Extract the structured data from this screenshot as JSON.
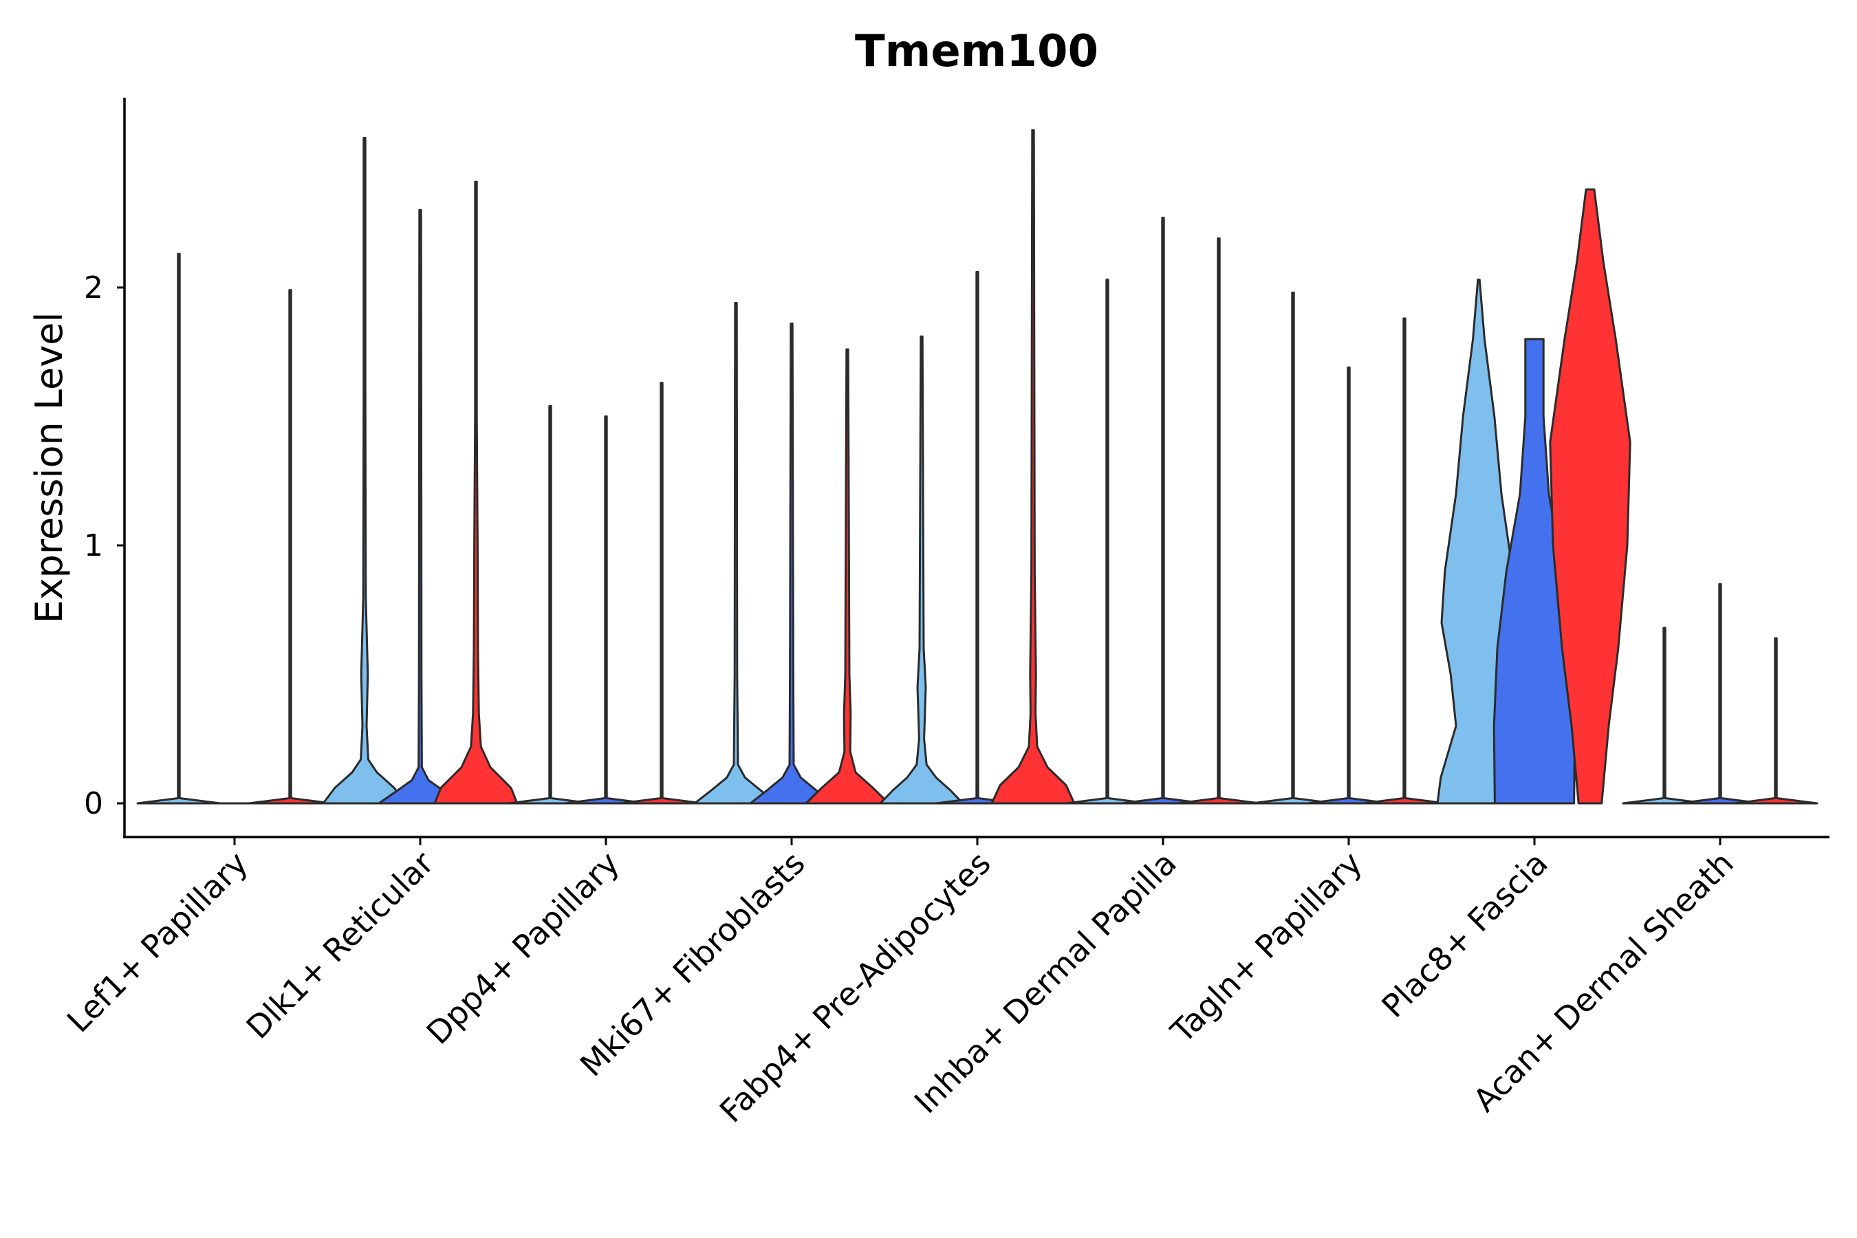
{
  "chart_data": {
    "type": "violin",
    "title": "Tmem100",
    "xlabel": "",
    "ylabel": "Expression Level",
    "ylim": [
      -0.13,
      2.75
    ],
    "yticks": [
      0,
      1,
      2
    ],
    "grid": false,
    "legend": "none",
    "series_colors": [
      "#7fbfed",
      "#4471ee",
      "#ff3333"
    ],
    "categories": [
      "Lef1+ Papillary",
      "Dlk1+ Reticular",
      "Dpp4+ Papillary",
      "Mki67+ Fibroblasts",
      "Fabp4+ Pre-Adipocytes",
      "Inhba+ Dermal Papilla",
      "Tagln+ Papillary",
      "Plac8+ Fascia",
      "Acan+ Dermal Sheath"
    ],
    "groups": [
      {
        "category": "Lef1+ Papillary",
        "violins": [
          {
            "series": 0,
            "max": 2.13,
            "profile": [
              [
                0,
                1.0
              ],
              [
                0.02,
                0.02
              ],
              [
                2.13,
                0.01
              ]
            ]
          },
          {
            "series": 1,
            "max": 0.0,
            "profile": [
              [
                0,
                0.9
              ]
            ]
          },
          {
            "series": 2,
            "max": 1.99,
            "profile": [
              [
                0,
                1.0
              ],
              [
                0.02,
                0.02
              ],
              [
                1.99,
                0.01
              ]
            ]
          }
        ]
      },
      {
        "category": "Dlk1+ Reticular",
        "violins": [
          {
            "series": 0,
            "max": 2.58,
            "profile": [
              [
                0,
                1.0
              ],
              [
                0.06,
                0.72
              ],
              [
                0.12,
                0.3
              ],
              [
                0.17,
                0.09
              ],
              [
                0.3,
                0.05
              ],
              [
                0.5,
                0.08
              ],
              [
                0.62,
                0.06
              ],
              [
                0.8,
                0.03
              ],
              [
                1.6,
                0.02
              ],
              [
                2.58,
                0.01
              ]
            ]
          },
          {
            "series": 1,
            "max": 2.3,
            "profile": [
              [
                0,
                1.0
              ],
              [
                0.05,
                0.55
              ],
              [
                0.09,
                0.2
              ],
              [
                0.14,
                0.04
              ],
              [
                0.5,
                0.03
              ],
              [
                2.3,
                0.01
              ]
            ]
          },
          {
            "series": 2,
            "max": 2.41,
            "profile": [
              [
                0,
                1.0
              ],
              [
                0.06,
                0.85
              ],
              [
                0.14,
                0.35
              ],
              [
                0.22,
                0.12
              ],
              [
                0.35,
                0.07
              ],
              [
                0.6,
                0.05
              ],
              [
                1.0,
                0.04
              ],
              [
                1.5,
                0.02
              ],
              [
                2.41,
                0.01
              ]
            ]
          }
        ]
      },
      {
        "category": "Dpp4+ Papillary",
        "violins": [
          {
            "series": 0,
            "max": 1.54,
            "profile": [
              [
                0,
                1.0
              ],
              [
                0.02,
                0.02
              ],
              [
                1.54,
                0.01
              ]
            ]
          },
          {
            "series": 1,
            "max": 1.5,
            "profile": [
              [
                0,
                1.0
              ],
              [
                0.02,
                0.02
              ],
              [
                1.5,
                0.01
              ]
            ]
          },
          {
            "series": 2,
            "max": 1.63,
            "profile": [
              [
                0,
                1.0
              ],
              [
                0.02,
                0.02
              ],
              [
                1.63,
                0.01
              ]
            ]
          }
        ]
      },
      {
        "category": "Mki67+ Fibroblasts",
        "violins": [
          {
            "series": 0,
            "max": 1.94,
            "profile": [
              [
                0,
                1.0
              ],
              [
                0.05,
                0.6
              ],
              [
                0.1,
                0.22
              ],
              [
                0.15,
                0.05
              ],
              [
                0.5,
                0.03
              ],
              [
                1.94,
                0.01
              ]
            ]
          },
          {
            "series": 1,
            "max": 1.86,
            "profile": [
              [
                0,
                1.0
              ],
              [
                0.05,
                0.6
              ],
              [
                0.1,
                0.22
              ],
              [
                0.15,
                0.05
              ],
              [
                0.5,
                0.04
              ],
              [
                1.86,
                0.01
              ]
            ]
          },
          {
            "series": 2,
            "max": 1.76,
            "profile": [
              [
                0,
                1.0
              ],
              [
                0.06,
                0.62
              ],
              [
                0.12,
                0.2
              ],
              [
                0.2,
                0.07
              ],
              [
                0.35,
                0.08
              ],
              [
                0.5,
                0.05
              ],
              [
                1.76,
                0.01
              ]
            ]
          }
        ]
      },
      {
        "category": "Fabp4+ Pre-Adipocytes",
        "violins": [
          {
            "series": 0,
            "max": 1.81,
            "profile": [
              [
                0,
                1.0
              ],
              [
                0.05,
                0.7
              ],
              [
                0.1,
                0.35
              ],
              [
                0.15,
                0.12
              ],
              [
                0.25,
                0.06
              ],
              [
                0.45,
                0.1
              ],
              [
                0.6,
                0.05
              ],
              [
                1.81,
                0.01
              ]
            ]
          },
          {
            "series": 1,
            "max": 2.06,
            "profile": [
              [
                0,
                1.0
              ],
              [
                0.02,
                0.02
              ],
              [
                2.06,
                0.01
              ]
            ]
          },
          {
            "series": 2,
            "max": 2.61,
            "profile": [
              [
                0,
                1.0
              ],
              [
                0.07,
                0.8
              ],
              [
                0.14,
                0.35
              ],
              [
                0.22,
                0.1
              ],
              [
                0.35,
                0.06
              ],
              [
                0.5,
                0.07
              ],
              [
                0.9,
                0.04
              ],
              [
                2.61,
                0.01
              ]
            ]
          }
        ]
      },
      {
        "category": "Inhba+ Dermal Papilla",
        "violins": [
          {
            "series": 0,
            "max": 2.03,
            "profile": [
              [
                0,
                1.0
              ],
              [
                0.02,
                0.02
              ],
              [
                2.03,
                0.01
              ]
            ]
          },
          {
            "series": 1,
            "max": 2.27,
            "profile": [
              [
                0,
                1.0
              ],
              [
                0.02,
                0.02
              ],
              [
                2.27,
                0.01
              ]
            ]
          },
          {
            "series": 2,
            "max": 2.19,
            "profile": [
              [
                0,
                1.0
              ],
              [
                0.02,
                0.02
              ],
              [
                2.19,
                0.01
              ]
            ]
          }
        ]
      },
      {
        "category": "Tagln+ Papillary",
        "violins": [
          {
            "series": 0,
            "max": 1.98,
            "profile": [
              [
                0,
                1.0
              ],
              [
                0.02,
                0.02
              ],
              [
                1.98,
                0.01
              ]
            ]
          },
          {
            "series": 1,
            "max": 1.69,
            "profile": [
              [
                0,
                1.0
              ],
              [
                0.02,
                0.02
              ],
              [
                1.69,
                0.01
              ]
            ]
          },
          {
            "series": 2,
            "max": 1.88,
            "profile": [
              [
                0,
                1.0
              ],
              [
                0.02,
                0.02
              ],
              [
                1.88,
                0.01
              ]
            ]
          }
        ]
      },
      {
        "category": "Plac8+ Fascia",
        "violins": [
          {
            "series": 0,
            "max": 2.03,
            "profile": [
              [
                0,
                1.0
              ],
              [
                0.1,
                0.92
              ],
              [
                0.3,
                0.55
              ],
              [
                0.5,
                0.68
              ],
              [
                0.7,
                0.9
              ],
              [
                0.9,
                0.82
              ],
              [
                1.2,
                0.55
              ],
              [
                1.5,
                0.38
              ],
              [
                1.8,
                0.14
              ],
              [
                2.03,
                0.01
              ]
            ]
          },
          {
            "series": 1,
            "max": 1.8,
            "profile": [
              [
                0,
                0.96
              ],
              [
                0.3,
                0.98
              ],
              [
                0.6,
                0.9
              ],
              [
                0.9,
                0.68
              ],
              [
                1.2,
                0.35
              ],
              [
                1.5,
                0.22
              ],
              [
                1.8,
                0.22
              ]
            ]
          },
          {
            "series": 2,
            "max": 2.38,
            "profile": [
              [
                0,
                0.28
              ],
              [
                0.3,
                0.45
              ],
              [
                0.6,
                0.68
              ],
              [
                1.0,
                0.9
              ],
              [
                1.4,
                0.97
              ],
              [
                1.8,
                0.62
              ],
              [
                2.1,
                0.32
              ],
              [
                2.38,
                0.1
              ]
            ]
          }
        ]
      },
      {
        "category": "Acan+ Dermal Sheath",
        "violins": [
          {
            "series": 0,
            "max": 0.68,
            "profile": [
              [
                0,
                1.0
              ],
              [
                0.02,
                0.02
              ],
              [
                0.68,
                0.01
              ]
            ]
          },
          {
            "series": 1,
            "max": 0.85,
            "profile": [
              [
                0,
                1.0
              ],
              [
                0.02,
                0.02
              ],
              [
                0.85,
                0.01
              ]
            ]
          },
          {
            "series": 2,
            "max": 0.64,
            "profile": [
              [
                0,
                1.0
              ],
              [
                0.02,
                0.02
              ],
              [
                0.64,
                0.01
              ]
            ]
          }
        ]
      }
    ]
  }
}
